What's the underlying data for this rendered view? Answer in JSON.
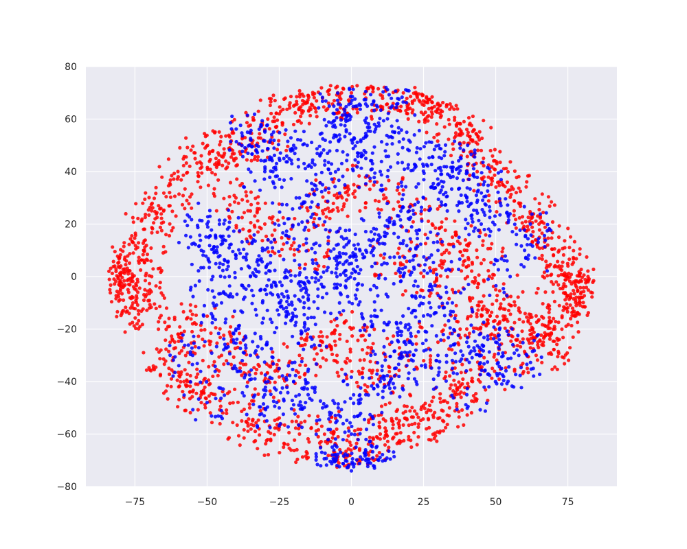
{
  "chart_data": {
    "type": "scatter",
    "title": "",
    "xlabel": "",
    "ylabel": "",
    "xlim": [
      -92,
      92
    ],
    "ylim": [
      -80,
      80
    ],
    "grid": true,
    "background_color": "#eaeaf2",
    "grid_color": "#ffffff",
    "x_ticks": [
      {
        "value": -75,
        "label": "−75"
      },
      {
        "value": -50,
        "label": "−50"
      },
      {
        "value": -25,
        "label": "−25"
      },
      {
        "value": 0,
        "label": "0"
      },
      {
        "value": 25,
        "label": "25"
      },
      {
        "value": 50,
        "label": "50"
      },
      {
        "value": 75,
        "label": "75"
      }
    ],
    "y_ticks": [
      {
        "value": 80,
        "label": "80"
      },
      {
        "value": 60,
        "label": "60"
      },
      {
        "value": 40,
        "label": "40"
      },
      {
        "value": 20,
        "label": "20"
      },
      {
        "value": 0,
        "label": "0"
      },
      {
        "value": -20,
        "label": "−20"
      },
      {
        "value": -40,
        "label": "−40"
      },
      {
        "value": -60,
        "label": "−60"
      },
      {
        "value": -80,
        "label": "−80"
      }
    ],
    "series": [
      {
        "color": "#ff0000",
        "point_count": 2600,
        "points": [
          [
            -84,
            2
          ],
          [
            -82,
            4
          ],
          [
            -80,
            -2
          ],
          [
            -78,
            6
          ],
          [
            -76,
            1
          ],
          [
            -74,
            -6
          ],
          [
            -72,
            10
          ],
          [
            -70,
            -12
          ],
          [
            -79,
            -9
          ],
          [
            -77,
            -14
          ],
          [
            -72,
            18
          ],
          [
            -68,
            22
          ],
          [
            -66,
            26
          ],
          [
            -63,
            32
          ],
          [
            -60,
            38
          ],
          [
            -56,
            42
          ],
          [
            -52,
            46
          ],
          [
            -48,
            48
          ],
          [
            -44,
            47
          ],
          [
            -40,
            45
          ],
          [
            -66,
            -28
          ],
          [
            -62,
            -32
          ],
          [
            -58,
            -40
          ],
          [
            -56,
            -44
          ],
          [
            -52,
            -48
          ],
          [
            -48,
            -38
          ],
          [
            -45,
            -30
          ],
          [
            -42,
            -22
          ],
          [
            -60,
            -22
          ],
          [
            -55,
            -18
          ],
          [
            -35,
            52
          ],
          [
            -30,
            56
          ],
          [
            -25,
            62
          ],
          [
            -20,
            65
          ],
          [
            -15,
            69
          ],
          [
            -10,
            68
          ],
          [
            0,
            70
          ],
          [
            5,
            68
          ],
          [
            12,
            71
          ],
          [
            18,
            70
          ],
          [
            22,
            72
          ],
          [
            26,
            68
          ],
          [
            30,
            66
          ],
          [
            34,
            58
          ],
          [
            38,
            55
          ],
          [
            42,
            52
          ],
          [
            45,
            48
          ],
          [
            48,
            40
          ],
          [
            52,
            36
          ],
          [
            55,
            33
          ],
          [
            58,
            28
          ],
          [
            62,
            24
          ],
          [
            65,
            20
          ],
          [
            68,
            12
          ],
          [
            70,
            8
          ],
          [
            72,
            4
          ],
          [
            75,
            0
          ],
          [
            78,
            -4
          ],
          [
            80,
            -8
          ],
          [
            82,
            -2
          ],
          [
            83,
            -6
          ],
          [
            74,
            -12
          ],
          [
            70,
            -16
          ],
          [
            68,
            -22
          ],
          [
            66,
            -26
          ],
          [
            64,
            -30
          ],
          [
            62,
            -18
          ],
          [
            58,
            -12
          ],
          [
            56,
            -20
          ],
          [
            72,
            -24
          ],
          [
            -38,
            -55
          ],
          [
            -32,
            -58
          ],
          [
            -28,
            -62
          ],
          [
            -22,
            -64
          ],
          [
            -18,
            -60
          ],
          [
            -12,
            -56
          ],
          [
            -8,
            -62
          ],
          [
            -4,
            -66
          ],
          [
            2,
            -70
          ],
          [
            6,
            -68
          ],
          [
            10,
            -60
          ],
          [
            14,
            -55
          ],
          [
            18,
            -52
          ],
          [
            22,
            -56
          ],
          [
            26,
            -58
          ],
          [
            30,
            -54
          ],
          [
            34,
            -50
          ],
          [
            38,
            -44
          ],
          [
            42,
            -40
          ],
          [
            46,
            -36
          ],
          [
            -30,
            -40
          ],
          [
            -25,
            -35
          ],
          [
            -18,
            -30
          ],
          [
            -10,
            -25
          ],
          [
            -5,
            -30
          ],
          [
            0,
            -20
          ],
          [
            4,
            -35
          ],
          [
            10,
            -38
          ],
          [
            20,
            -30
          ],
          [
            30,
            -25
          ],
          [
            -40,
            30
          ],
          [
            -35,
            25
          ],
          [
            -30,
            20
          ],
          [
            -22,
            15
          ],
          [
            -15,
            10
          ],
          [
            -10,
            25
          ],
          [
            -5,
            30
          ],
          [
            5,
            35
          ],
          [
            12,
            30
          ],
          [
            20,
            25
          ],
          [
            28,
            20
          ],
          [
            35,
            15
          ],
          [
            40,
            10
          ],
          [
            45,
            5
          ],
          [
            50,
            -5
          ],
          [
            48,
            -15
          ],
          [
            40,
            -20
          ],
          [
            35,
            -5
          ],
          [
            25,
            0
          ],
          [
            15,
            5
          ]
        ]
      },
      {
        "color": "#0000ff",
        "point_count": 2000,
        "points": [
          [
            -50,
            20
          ],
          [
            -45,
            15
          ],
          [
            -40,
            8
          ],
          [
            -35,
            0
          ],
          [
            -30,
            -5
          ],
          [
            -25,
            -10
          ],
          [
            -20,
            -15
          ],
          [
            -15,
            -20
          ],
          [
            -10,
            -8
          ],
          [
            -5,
            0
          ],
          [
            0,
            5
          ],
          [
            5,
            10
          ],
          [
            10,
            15
          ],
          [
            15,
            20
          ],
          [
            20,
            25
          ],
          [
            25,
            30
          ],
          [
            30,
            35
          ],
          [
            35,
            40
          ],
          [
            40,
            30
          ],
          [
            45,
            20
          ],
          [
            -30,
            40
          ],
          [
            -25,
            45
          ],
          [
            -20,
            50
          ],
          [
            -15,
            42
          ],
          [
            -10,
            35
          ],
          [
            -5,
            48
          ],
          [
            0,
            52
          ],
          [
            5,
            45
          ],
          [
            10,
            40
          ],
          [
            15,
            55
          ],
          [
            -2,
            60
          ],
          [
            2,
            65
          ],
          [
            8,
            58
          ],
          [
            12,
            72
          ],
          [
            -6,
            62
          ],
          [
            20,
            48
          ],
          [
            25,
            42
          ],
          [
            30,
            10
          ],
          [
            35,
            -10
          ],
          [
            40,
            -25
          ],
          [
            -45,
            -10
          ],
          [
            -40,
            -20
          ],
          [
            -35,
            -30
          ],
          [
            -30,
            -45
          ],
          [
            -25,
            -50
          ],
          [
            -20,
            -40
          ],
          [
            -15,
            -45
          ],
          [
            -10,
            -50
          ],
          [
            -5,
            -55
          ],
          [
            0,
            -60
          ],
          [
            5,
            -45
          ],
          [
            10,
            -40
          ],
          [
            15,
            -35
          ],
          [
            20,
            -25
          ],
          [
            25,
            -15
          ],
          [
            30,
            -30
          ],
          [
            35,
            -35
          ],
          [
            40,
            -45
          ],
          [
            45,
            -30
          ],
          [
            50,
            -25
          ],
          [
            -5,
            -72
          ],
          [
            0,
            -74
          ],
          [
            5,
            -70
          ],
          [
            8,
            -73
          ],
          [
            -50,
            -48
          ],
          [
            -55,
            -30
          ],
          [
            -48,
            0
          ],
          [
            -52,
            10
          ],
          [
            55,
            0
          ],
          [
            60,
            10
          ],
          [
            62,
            20
          ],
          [
            58,
            -30
          ],
          [
            52,
            -35
          ],
          [
            48,
            25
          ],
          [
            44,
            35
          ],
          [
            38,
            45
          ],
          [
            -36,
            55
          ],
          [
            -28,
            52
          ],
          [
            -18,
            30
          ],
          [
            -8,
            15
          ],
          [
            2,
            -5
          ],
          [
            8,
            -15
          ],
          [
            14,
            -25
          ],
          [
            -12,
            5
          ],
          [
            -18,
            -2
          ],
          [
            18,
            0
          ],
          [
            22,
            8
          ],
          [
            -22,
            22
          ],
          [
            28,
            -5
          ],
          [
            -28,
            8
          ]
        ]
      }
    ]
  }
}
